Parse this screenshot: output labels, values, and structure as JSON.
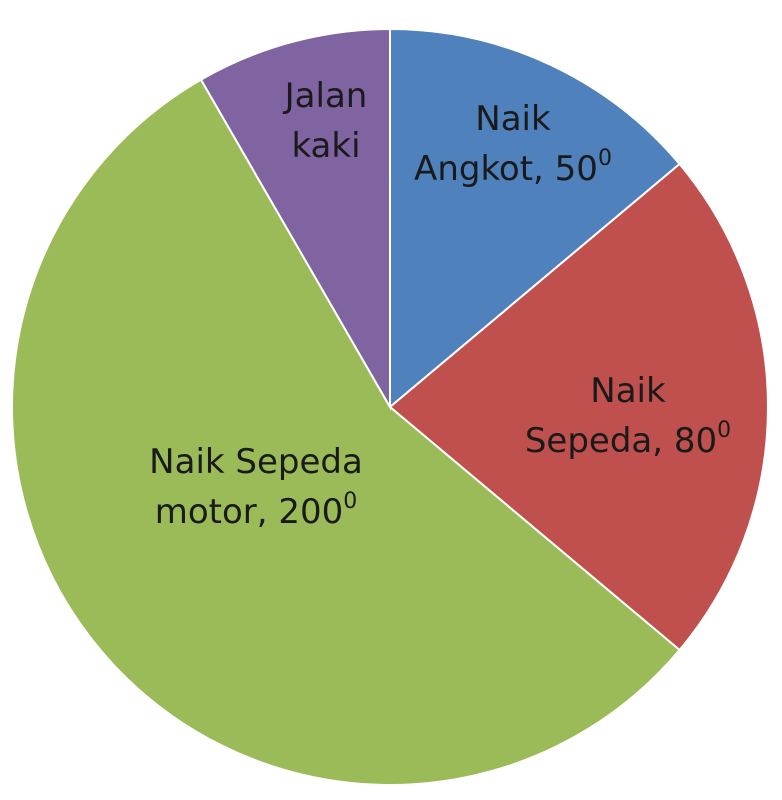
{
  "chart_data": {
    "type": "pie",
    "title": "",
    "unit": "degrees",
    "slices": [
      {
        "key": "angkot",
        "line1": "Naik",
        "line2": "Angkot, 50",
        "sup": "0",
        "value": 50,
        "color": "#4f81bd"
      },
      {
        "key": "sepeda",
        "line1": "Naik",
        "line2": "Sepeda, 80",
        "sup": "0",
        "value": 80,
        "color": "#c0504d"
      },
      {
        "key": "motor",
        "line1": "Naik Sepeda",
        "line2": "motor, 200",
        "sup": "0",
        "value": 200,
        "color": "#9bbb59"
      },
      {
        "key": "jalan",
        "line1": "Jalan",
        "line2": "kaki",
        "sup": "",
        "value": 30,
        "color": "#8064a2"
      }
    ]
  }
}
